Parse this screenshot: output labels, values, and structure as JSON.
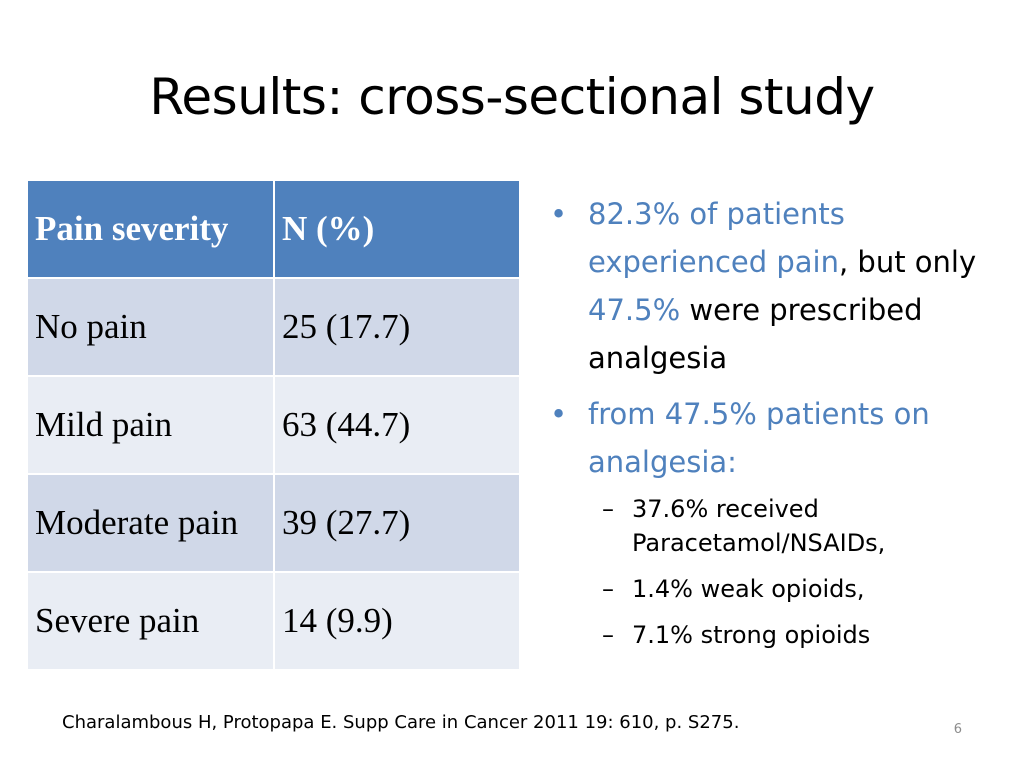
{
  "title": "Results: cross-sectional study",
  "table": {
    "headers": [
      "Pain severity",
      "N (%)"
    ],
    "rows": [
      [
        "No pain",
        "25 (17.7)"
      ],
      [
        "Mild pain",
        "63 (44.7)"
      ],
      [
        "Moderate pain",
        "39 (27.7)"
      ],
      [
        "Severe pain",
        "14 (9.9)"
      ]
    ]
  },
  "bullets": {
    "b1": {
      "part1": "82.3% of patients experienced pain",
      "part2": ",  but only ",
      "part3": "47.5%",
      "part4": " were prescribed analgesia"
    },
    "b2": {
      "text": " from 47.5% patients on analgesia:",
      "subitems": [
        "37.6% received Paracetamol/NSAIDs,",
        "1.4% weak opioids,",
        "7.1% strong opioids"
      ]
    },
    "bullet_char": "•",
    "dash_char": "–"
  },
  "citation": "Charalambous H, Protopapa E. Supp Care in Cancer 2011 19: 610, p. S275.",
  "slide_number": "6",
  "colors": {
    "header_bg": "#4f81bd",
    "row_odd_bg": "#d0d8e8",
    "row_even_bg": "#e9edf4",
    "accent_text": "#4f81bd"
  }
}
